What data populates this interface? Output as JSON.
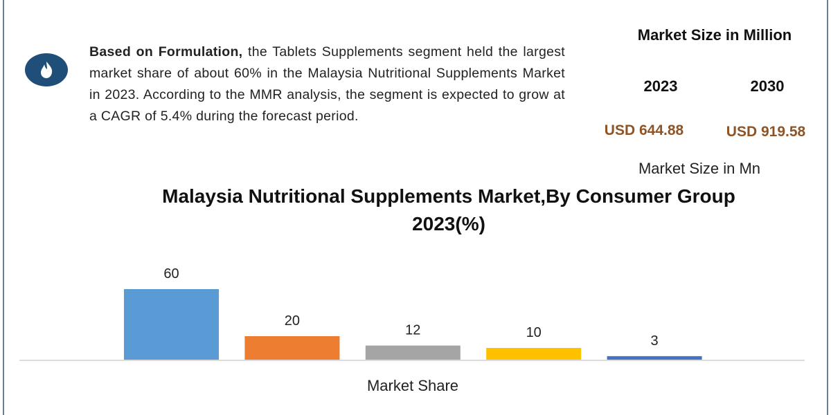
{
  "info": {
    "lead": "Based on Formulation,",
    "body": "the Tablets Supplements segment held the largest market share of about 60% in the Malaysia Nutritional Supplements Market in 2023. According to the MMR analysis, the segment is expected to grow at a CAGR of 5.4% during the forecast period."
  },
  "market_size": {
    "title": "Market Size in Million",
    "years": [
      "2023",
      "2030"
    ],
    "values": [
      "USD 644.88",
      "USD 919.58"
    ],
    "unit_label": "Market Size in Mn"
  },
  "chart_data": {
    "type": "bar",
    "title": "Malaysia Nutritional Supplements Market,By Consumer Group 2023(%)",
    "x_label": "Market Share",
    "categories": [
      null,
      null,
      null,
      null,
      null
    ],
    "values": [
      60,
      20,
      12,
      10,
      3
    ],
    "colors": [
      "#5b9bd5",
      "#ed7d31",
      "#a5a5a5",
      "#ffc000",
      "#4472c4"
    ]
  }
}
